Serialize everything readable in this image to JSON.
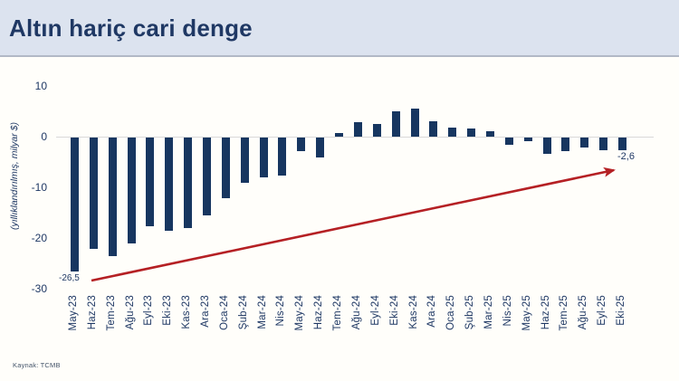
{
  "header": {
    "title": "Altın hariç cari denge"
  },
  "chart_data": {
    "type": "bar",
    "title": "Altın hariç cari denge",
    "ylabel": "(yıllıklandırılmış, milyar $)",
    "xlabel": "",
    "categories": [
      "May-23",
      "Haz-23",
      "Tem-23",
      "Ağu-23",
      "Eyl-23",
      "Eki-23",
      "Kas-23",
      "Ara-23",
      "Oca-24",
      "Şub-24",
      "Mar-24",
      "Nis-24",
      "May-24",
      "Haz-24",
      "Tem-24",
      "Ağu-24",
      "Eyl-24",
      "Eki-24",
      "Kas-24",
      "Ara-24",
      "Oca-25",
      "Şub-25",
      "Mar-25",
      "Nis-25",
      "May-25",
      "Haz-25",
      "Tem-25",
      "Ağu-25",
      "Eyl-25",
      "Eki-25"
    ],
    "values": [
      -26.5,
      -22,
      -23.5,
      -21,
      -17.5,
      -18.5,
      -18,
      -15.5,
      -12,
      -9,
      -8,
      -7.5,
      -2.7,
      -4,
      0.7,
      2.8,
      2.5,
      5,
      5.5,
      3,
      1.7,
      1.5,
      1,
      -1.5,
      -0.8,
      -3.3,
      -2.7,
      -2,
      -2.5,
      -2.6
    ],
    "yticks": [
      10,
      0,
      -10,
      -20,
      -30
    ],
    "ylim": [
      -30,
      10
    ],
    "grid": "off",
    "legend": "none",
    "annotations": {
      "first_bar_label": "-26,5",
      "last_bar_label": "-2,6"
    }
  },
  "footer": {
    "source": "Kaynak: TCMB"
  },
  "colors": {
    "bar": "#173660",
    "arrow": "#b52024",
    "title": "#1f3864",
    "header_bg": "#dce3ef",
    "axis_text": "#1f3864"
  }
}
